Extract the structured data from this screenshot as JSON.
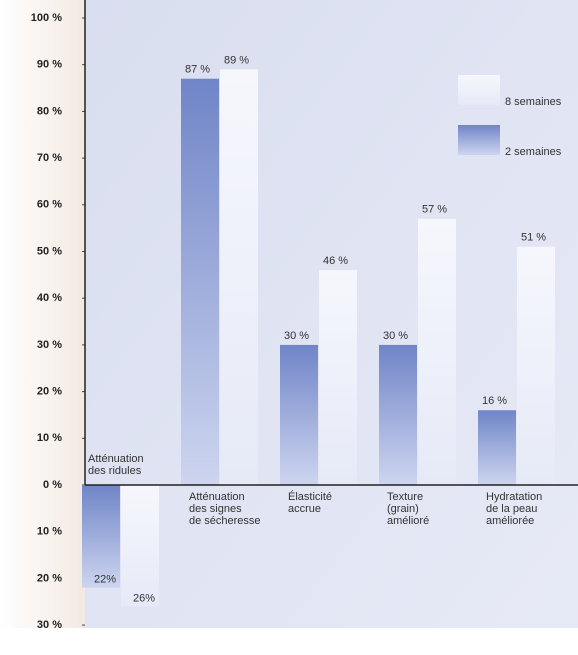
{
  "chart_data": {
    "type": "bar",
    "categories": [
      "Atténuation\ndes ridules",
      "Atténuation\ndes signes\nde sécheresse",
      "Élasticité\naccrue",
      "Texture\n(grain)\namélioré",
      "Hydratation\nde la peau\naméliorée"
    ],
    "series": [
      {
        "name": "2 semaines",
        "color": "#7085c8",
        "values": [
          -22,
          87,
          30,
          30,
          16
        ],
        "value_labels": [
          "22%",
          "87 %",
          "30 %",
          "30 %",
          "16 %"
        ]
      },
      {
        "name": "8 semaines",
        "color": "#f6f7fd",
        "values": [
          -26,
          89,
          46,
          57,
          51
        ],
        "value_labels": [
          "26%",
          "89 %",
          "46 %",
          "57 %",
          "51 %"
        ]
      }
    ],
    "ylim": [
      -30,
      100
    ],
    "yticks": [
      {
        "value": 100,
        "label": "100 %"
      },
      {
        "value": 90,
        "label": "90 %"
      },
      {
        "value": 80,
        "label": "80 %"
      },
      {
        "value": 70,
        "label": "70 %"
      },
      {
        "value": 60,
        "label": "60 %"
      },
      {
        "value": 50,
        "label": "50 %"
      },
      {
        "value": 40,
        "label": "40 %"
      },
      {
        "value": 30,
        "label": "30 %"
      },
      {
        "value": 20,
        "label": "20 %"
      },
      {
        "value": 10,
        "label": "10 %"
      },
      {
        "value": 0,
        "label": "0 %"
      },
      {
        "value": -10,
        "label": "10 %"
      },
      {
        "value": -20,
        "label": "20 %"
      },
      {
        "value": -30,
        "label": "30 %"
      }
    ],
    "legend": "upper right"
  }
}
